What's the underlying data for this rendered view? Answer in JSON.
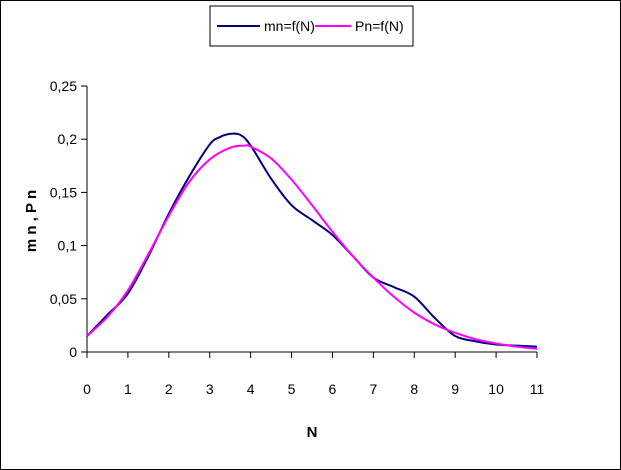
{
  "chart_data": {
    "type": "line",
    "xlabel": "N",
    "ylabel": "m n , P n",
    "xlim": [
      0,
      11
    ],
    "ylim": [
      0,
      0.25
    ],
    "x_ticks": [
      "0",
      "1",
      "2",
      "3",
      "4",
      "5",
      "6",
      "7",
      "8",
      "9",
      "10",
      "11"
    ],
    "y_ticks": [
      "0",
      "0,05",
      "0,1",
      "0,15",
      "0,2",
      "0,25"
    ],
    "y_tick_values": [
      0,
      0.05,
      0.1,
      0.15,
      0.2,
      0.25
    ],
    "grid": false,
    "legend_position": "top",
    "series": [
      {
        "name": "mn=f(N)",
        "color": "#000080",
        "points": [
          [
            0,
            0.015
          ],
          [
            0.5,
            0.035
          ],
          [
            1,
            0.055
          ],
          [
            1.5,
            0.09
          ],
          [
            2,
            0.13
          ],
          [
            2.5,
            0.165
          ],
          [
            3,
            0.195
          ],
          [
            3.25,
            0.202
          ],
          [
            3.5,
            0.205
          ],
          [
            3.75,
            0.204
          ],
          [
            4,
            0.194
          ],
          [
            4.5,
            0.163
          ],
          [
            5,
            0.138
          ],
          [
            5.5,
            0.124
          ],
          [
            6,
            0.11
          ],
          [
            6.5,
            0.09
          ],
          [
            7,
            0.07
          ],
          [
            7.5,
            0.061
          ],
          [
            8,
            0.052
          ],
          [
            8.5,
            0.032
          ],
          [
            9,
            0.015
          ],
          [
            9.5,
            0.01
          ],
          [
            10,
            0.007
          ],
          [
            10.5,
            0.006
          ],
          [
            11,
            0.005
          ]
        ]
      },
      {
        "name": "Pn=f(N)",
        "color": "#ff00ff",
        "points": [
          [
            0,
            0.015
          ],
          [
            0.5,
            0.033
          ],
          [
            1,
            0.058
          ],
          [
            1.5,
            0.092
          ],
          [
            2,
            0.128
          ],
          [
            2.5,
            0.16
          ],
          [
            3,
            0.181
          ],
          [
            3.5,
            0.192
          ],
          [
            3.85,
            0.194
          ],
          [
            4,
            0.193
          ],
          [
            4.5,
            0.182
          ],
          [
            5,
            0.162
          ],
          [
            5.5,
            0.138
          ],
          [
            6,
            0.113
          ],
          [
            6.5,
            0.09
          ],
          [
            7,
            0.07
          ],
          [
            7.5,
            0.052
          ],
          [
            8,
            0.037
          ],
          [
            8.5,
            0.026
          ],
          [
            9,
            0.018
          ],
          [
            9.5,
            0.012
          ],
          [
            10,
            0.008
          ],
          [
            10.5,
            0.005
          ],
          [
            11,
            0.003
          ]
        ]
      }
    ]
  }
}
